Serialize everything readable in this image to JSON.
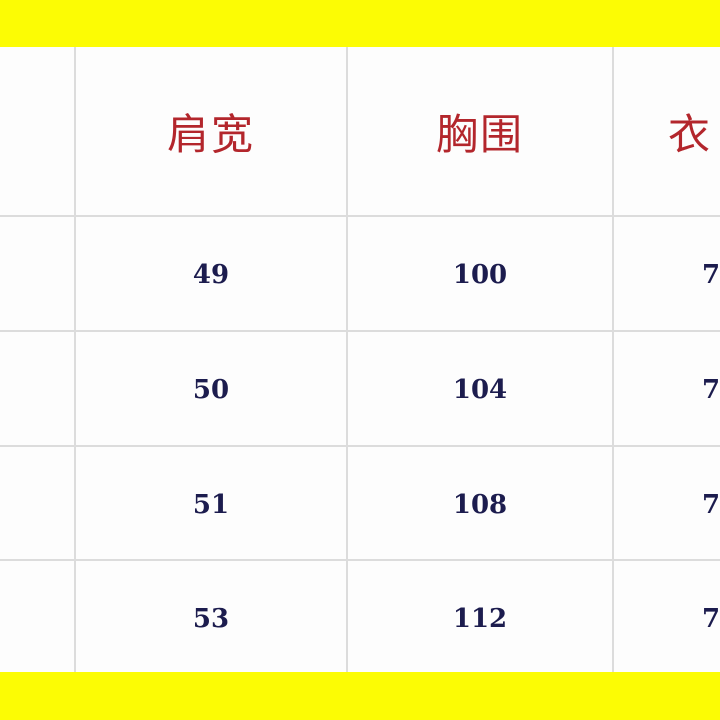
{
  "colors": {
    "band": "#fcfc04",
    "header_text": "#b3262c",
    "value_text": "#1c1c4e"
  },
  "table": {
    "headers": [
      "肩宽",
      "胸围",
      "衣"
    ],
    "rows": [
      [
        "49",
        "100",
        "7"
      ],
      [
        "50",
        "104",
        "7"
      ],
      [
        "51",
        "108",
        "7"
      ],
      [
        "53",
        "112",
        "7"
      ]
    ]
  }
}
